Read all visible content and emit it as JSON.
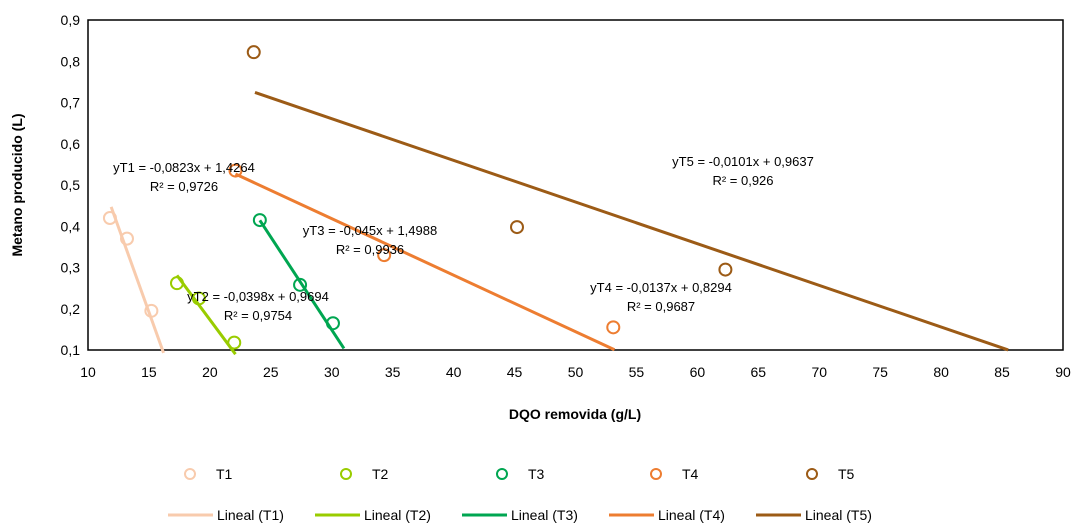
{
  "chart_data": {
    "type": "scatter",
    "title": "",
    "xlabel": "DQO removida (g/L)",
    "ylabel": "Metano producido (L)",
    "xlim": [
      10,
      90
    ],
    "ylim": [
      0.1,
      0.9
    ],
    "xticks": [
      10,
      15,
      20,
      25,
      30,
      35,
      40,
      45,
      50,
      55,
      60,
      65,
      70,
      75,
      80,
      85,
      90
    ],
    "yticks": [
      0.1,
      0.2,
      0.3,
      0.4,
      0.5,
      0.6,
      0.7,
      0.8,
      0.9
    ],
    "tick_labels_x": [
      "10",
      "15",
      "20",
      "25",
      "30",
      "35",
      "40",
      "45",
      "50",
      "55",
      "60",
      "65",
      "70",
      "75",
      "80",
      "85",
      "90"
    ],
    "tick_labels_y": [
      "0,1",
      "0,2",
      "0,3",
      "0,4",
      "0,5",
      "0,6",
      "0,7",
      "0,8",
      "0,9"
    ],
    "grid": false,
    "legend_position": "bottom",
    "series": [
      {
        "name": "T1",
        "color": "#F8CBAD",
        "points": [
          [
            11.8,
            0.42
          ],
          [
            13.2,
            0.37
          ],
          [
            15.2,
            0.195
          ]
        ],
        "trend_name": "Lineal (T1)",
        "slope": -0.0823,
        "intercept": 1.4264,
        "trend_x": [
          11.9,
          16.2
        ],
        "equation": "yT1 = -0,0823x + 1,4264",
        "r2": "R² = 0,9726"
      },
      {
        "name": "T2",
        "color": "#99CC00",
        "points": [
          [
            17.3,
            0.262
          ],
          [
            19.1,
            0.225
          ],
          [
            22.0,
            0.118
          ]
        ],
        "trend_name": "Lineal (T2)",
        "slope": -0.0398,
        "intercept": 0.9694,
        "trend_x": [
          17.3,
          22.1
        ],
        "equation": "yT2 = -0,0398x + 0,9694",
        "r2": "R² = 0,9754"
      },
      {
        "name": "T3",
        "color": "#00A651",
        "points": [
          [
            24.1,
            0.415
          ],
          [
            27.4,
            0.258
          ],
          [
            30.1,
            0.165
          ]
        ],
        "trend_name": "Lineal (T3)",
        "slope": -0.045,
        "intercept": 1.4988,
        "trend_x": [
          24.1,
          31.0
        ],
        "equation": "yT3 = -0,045x + 1,4988",
        "r2": "R² = 0,9936"
      },
      {
        "name": "T4",
        "color": "#ED7D31",
        "points": [
          [
            22.1,
            0.535
          ],
          [
            34.3,
            0.33
          ],
          [
            53.1,
            0.155
          ]
        ],
        "trend_name": "Lineal (T4)",
        "slope": -0.0137,
        "intercept": 0.8294,
        "trend_x": [
          22.1,
          53.2
        ],
        "equation": "yT4 = -0,0137x + 0,8294",
        "r2": "R² = 0,9687"
      },
      {
        "name": "T5",
        "color": "#9C5B16",
        "points": [
          [
            23.6,
            0.822
          ],
          [
            45.2,
            0.398
          ],
          [
            62.3,
            0.295
          ]
        ],
        "trend_name": "Lineal (T5)",
        "slope": -0.0101,
        "intercept": 0.9637,
        "trend_x": [
          23.7,
          85.5
        ],
        "equation": "yT5 = -0,0101x + 0,9637",
        "r2": "R² = 0,926"
      }
    ]
  }
}
